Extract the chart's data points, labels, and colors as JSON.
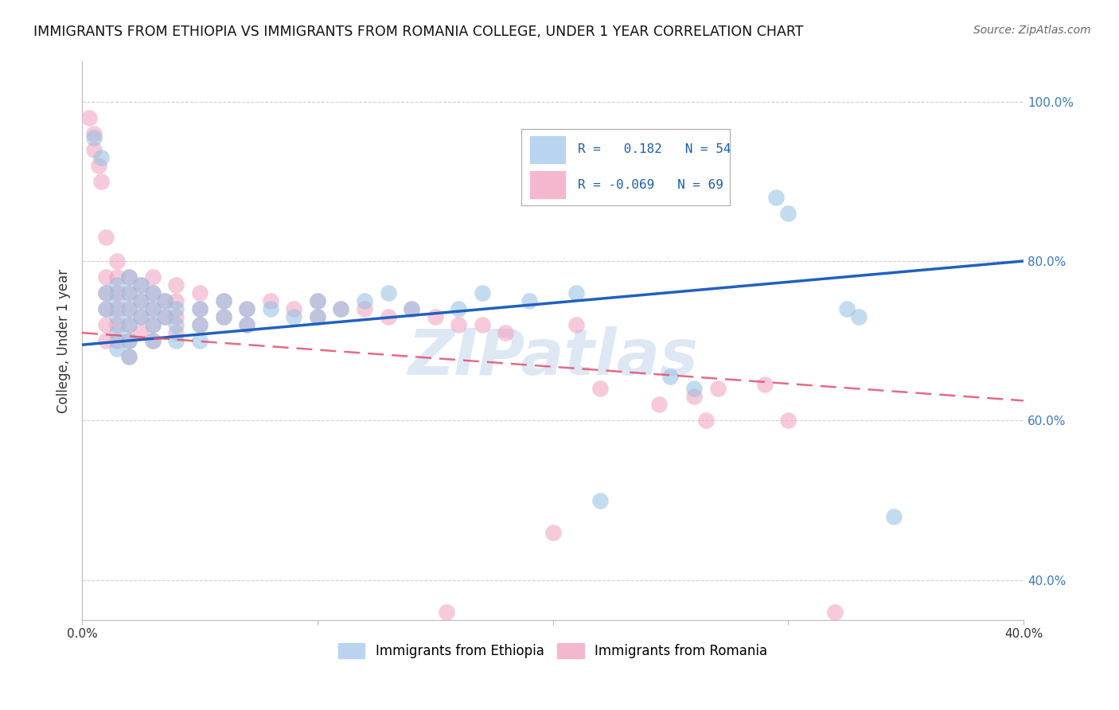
{
  "title": "IMMIGRANTS FROM ETHIOPIA VS IMMIGRANTS FROM ROMANIA COLLEGE, UNDER 1 YEAR CORRELATION CHART",
  "source": "Source: ZipAtlas.com",
  "ylabel": "College, Under 1 year",
  "xlim": [
    0.0,
    0.4
  ],
  "ylim": [
    0.35,
    1.05
  ],
  "xtick_labels": [
    "0.0%",
    "",
    "",
    "",
    "40.0%"
  ],
  "xtick_vals": [
    0.0,
    0.1,
    0.2,
    0.3,
    0.4
  ],
  "ytick_labels": [
    "40.0%",
    "60.0%",
    "80.0%",
    "100.0%"
  ],
  "ytick_vals": [
    0.4,
    0.6,
    0.8,
    1.0
  ],
  "ethiopia_color": "#93bfe0",
  "romania_color": "#f0a0be",
  "ethiopia_line_color": "#2060c0",
  "romania_line_color": "#e05070",
  "watermark": "ZIPatlas",
  "background_color": "#ffffff",
  "ethiopia_scatter": [
    [
      0.005,
      0.955
    ],
    [
      0.008,
      0.93
    ],
    [
      0.01,
      0.76
    ],
    [
      0.01,
      0.74
    ],
    [
      0.015,
      0.77
    ],
    [
      0.015,
      0.75
    ],
    [
      0.015,
      0.73
    ],
    [
      0.015,
      0.71
    ],
    [
      0.015,
      0.69
    ],
    [
      0.02,
      0.78
    ],
    [
      0.02,
      0.76
    ],
    [
      0.02,
      0.74
    ],
    [
      0.02,
      0.72
    ],
    [
      0.02,
      0.7
    ],
    [
      0.02,
      0.68
    ],
    [
      0.025,
      0.77
    ],
    [
      0.025,
      0.75
    ],
    [
      0.025,
      0.73
    ],
    [
      0.03,
      0.76
    ],
    [
      0.03,
      0.74
    ],
    [
      0.03,
      0.72
    ],
    [
      0.03,
      0.7
    ],
    [
      0.035,
      0.75
    ],
    [
      0.035,
      0.73
    ],
    [
      0.04,
      0.74
    ],
    [
      0.04,
      0.72
    ],
    [
      0.04,
      0.7
    ],
    [
      0.05,
      0.74
    ],
    [
      0.05,
      0.72
    ],
    [
      0.05,
      0.7
    ],
    [
      0.06,
      0.75
    ],
    [
      0.06,
      0.73
    ],
    [
      0.07,
      0.74
    ],
    [
      0.07,
      0.72
    ],
    [
      0.08,
      0.74
    ],
    [
      0.09,
      0.73
    ],
    [
      0.1,
      0.75
    ],
    [
      0.1,
      0.73
    ],
    [
      0.11,
      0.74
    ],
    [
      0.12,
      0.75
    ],
    [
      0.13,
      0.76
    ],
    [
      0.14,
      0.74
    ],
    [
      0.16,
      0.74
    ],
    [
      0.17,
      0.76
    ],
    [
      0.19,
      0.75
    ],
    [
      0.21,
      0.76
    ],
    [
      0.22,
      0.5
    ],
    [
      0.25,
      0.655
    ],
    [
      0.26,
      0.64
    ],
    [
      0.295,
      0.88
    ],
    [
      0.3,
      0.86
    ],
    [
      0.325,
      0.74
    ],
    [
      0.33,
      0.73
    ],
    [
      0.345,
      0.48
    ]
  ],
  "romania_scatter": [
    [
      0.003,
      0.98
    ],
    [
      0.005,
      0.96
    ],
    [
      0.005,
      0.94
    ],
    [
      0.007,
      0.92
    ],
    [
      0.008,
      0.9
    ],
    [
      0.01,
      0.83
    ],
    [
      0.01,
      0.78
    ],
    [
      0.01,
      0.76
    ],
    [
      0.01,
      0.74
    ],
    [
      0.01,
      0.72
    ],
    [
      0.01,
      0.7
    ],
    [
      0.015,
      0.8
    ],
    [
      0.015,
      0.78
    ],
    [
      0.015,
      0.76
    ],
    [
      0.015,
      0.74
    ],
    [
      0.015,
      0.72
    ],
    [
      0.015,
      0.7
    ],
    [
      0.02,
      0.78
    ],
    [
      0.02,
      0.76
    ],
    [
      0.02,
      0.74
    ],
    [
      0.02,
      0.72
    ],
    [
      0.02,
      0.7
    ],
    [
      0.02,
      0.68
    ],
    [
      0.025,
      0.77
    ],
    [
      0.025,
      0.75
    ],
    [
      0.025,
      0.73
    ],
    [
      0.025,
      0.71
    ],
    [
      0.03,
      0.78
    ],
    [
      0.03,
      0.76
    ],
    [
      0.03,
      0.74
    ],
    [
      0.03,
      0.72
    ],
    [
      0.03,
      0.7
    ],
    [
      0.035,
      0.75
    ],
    [
      0.035,
      0.73
    ],
    [
      0.04,
      0.77
    ],
    [
      0.04,
      0.75
    ],
    [
      0.04,
      0.73
    ],
    [
      0.04,
      0.71
    ],
    [
      0.05,
      0.76
    ],
    [
      0.05,
      0.74
    ],
    [
      0.05,
      0.72
    ],
    [
      0.06,
      0.75
    ],
    [
      0.06,
      0.73
    ],
    [
      0.07,
      0.74
    ],
    [
      0.07,
      0.72
    ],
    [
      0.08,
      0.75
    ],
    [
      0.09,
      0.74
    ],
    [
      0.1,
      0.75
    ],
    [
      0.1,
      0.73
    ],
    [
      0.11,
      0.74
    ],
    [
      0.12,
      0.74
    ],
    [
      0.13,
      0.73
    ],
    [
      0.14,
      0.74
    ],
    [
      0.15,
      0.73
    ],
    [
      0.16,
      0.72
    ],
    [
      0.17,
      0.72
    ],
    [
      0.18,
      0.71
    ],
    [
      0.2,
      0.46
    ],
    [
      0.21,
      0.72
    ],
    [
      0.22,
      0.64
    ],
    [
      0.245,
      0.62
    ],
    [
      0.26,
      0.63
    ],
    [
      0.265,
      0.6
    ],
    [
      0.27,
      0.64
    ],
    [
      0.29,
      0.645
    ],
    [
      0.155,
      0.36
    ],
    [
      0.3,
      0.6
    ],
    [
      0.32,
      0.36
    ]
  ]
}
